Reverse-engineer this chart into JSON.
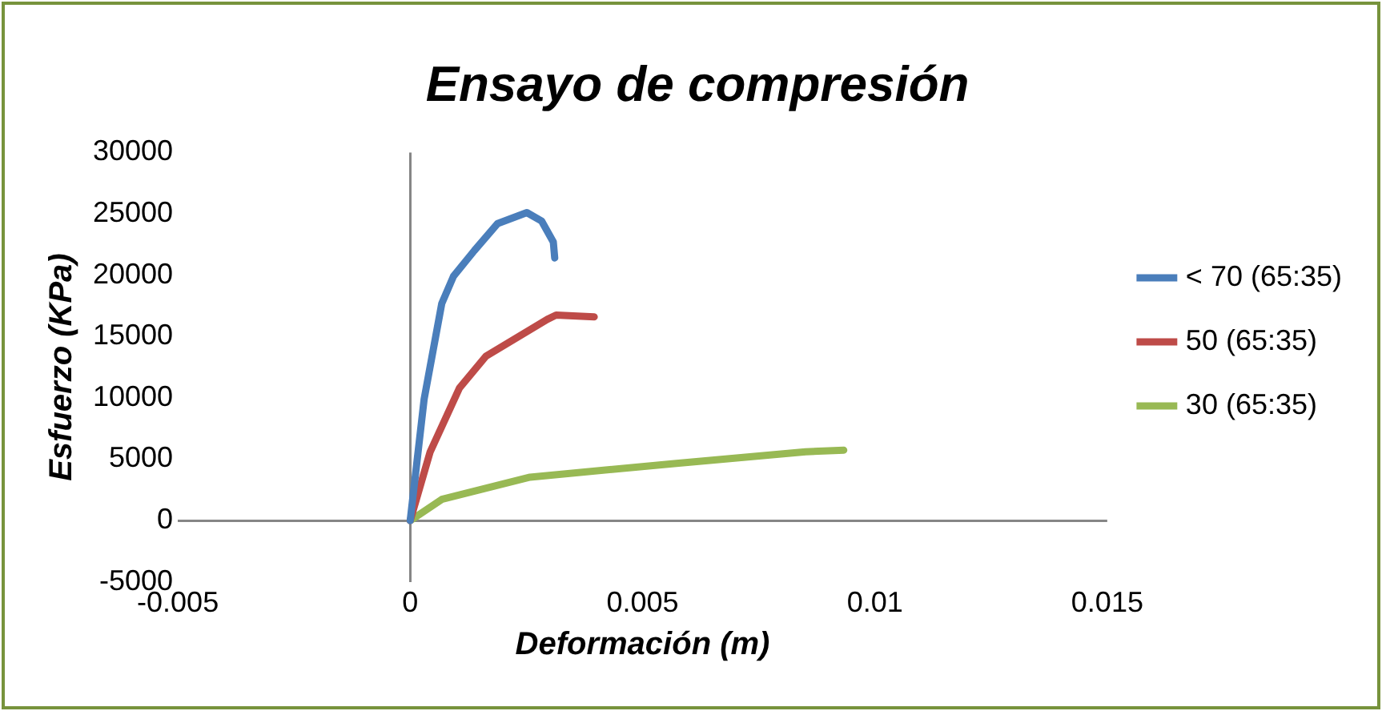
{
  "chart_data": {
    "type": "line",
    "title": "Ensayo de compresión",
    "xlabel": "Deformación (m)",
    "ylabel": "Esfuerzo (KPa)",
    "xlim": [
      -0.005,
      0.015
    ],
    "xticks": [
      -0.005,
      0,
      0.005,
      0.01,
      0.015
    ],
    "ylim": [
      -5000,
      30000
    ],
    "yticks": [
      -5000,
      0,
      5000,
      10000,
      15000,
      20000,
      25000,
      30000
    ],
    "legend": "right",
    "marker": "none",
    "line_style": "solid",
    "series": [
      {
        "name": "< 70 (65:35)",
        "color": "#4a7ebb",
        "x": [
          0,
          0.0003,
          0.00068,
          0.00093,
          0.00138,
          0.00188,
          0.00251,
          0.00283,
          0.00308,
          0.00311
        ],
        "values": [
          0,
          9900,
          17700,
          19900,
          22000,
          24200,
          25100,
          24400,
          22700,
          21400
        ]
      },
      {
        "name": "50 (65:35)",
        "color": "#be4b48",
        "x": [
          0,
          0.00043,
          0.00106,
          0.00163,
          0.00295,
          0.00314,
          0.00396
        ],
        "values": [
          0,
          5600,
          10800,
          13400,
          16400,
          16750,
          16600
        ]
      },
      {
        "name": "30 (65:35)",
        "color": "#98b954",
        "x": [
          0,
          0.00068,
          0.00258,
          0.00573,
          0.00851,
          0.00933
        ],
        "values": [
          0,
          1730,
          3540,
          4660,
          5610,
          5740
        ]
      }
    ]
  }
}
